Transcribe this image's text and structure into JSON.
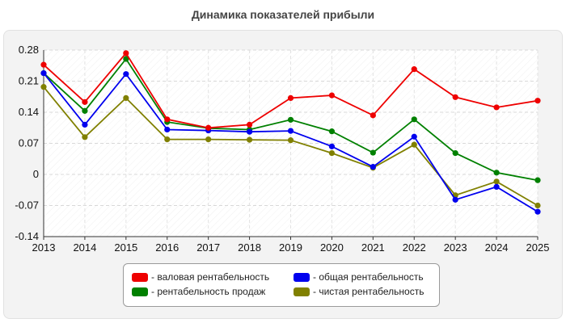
{
  "chart_data": {
    "type": "line",
    "title": "Динамика показателей прибыли",
    "x": [
      "2013",
      "2014",
      "2015",
      "2016",
      "2017",
      "2018",
      "2019",
      "2020",
      "2021",
      "2022",
      "2023",
      "2024",
      "2025"
    ],
    "y_ticks": [
      "0.28",
      "0.21",
      "0.14",
      "0.07",
      "0",
      "-0.07",
      "-0.14"
    ],
    "ylim": [
      -0.14,
      0.28
    ],
    "grid": true,
    "legend_position": "bottom",
    "series": [
      {
        "name": "- валовая рентабельность",
        "color": "#ee0000",
        "values": [
          0.247,
          0.163,
          0.273,
          0.124,
          0.105,
          0.112,
          0.172,
          0.178,
          0.133,
          0.237,
          0.174,
          0.151,
          0.166
        ]
      },
      {
        "name": "- общая рентабельность",
        "color": "#0000ee",
        "values": [
          0.228,
          0.112,
          0.226,
          0.101,
          0.099,
          0.096,
          0.098,
          0.063,
          0.017,
          0.085,
          -0.057,
          -0.028,
          -0.084
        ]
      },
      {
        "name": "- рентабельность продаж",
        "color": "#008000",
        "values": [
          0.228,
          0.143,
          0.26,
          0.118,
          0.104,
          0.101,
          0.123,
          0.097,
          0.049,
          0.124,
          0.048,
          0.004,
          -0.013
        ]
      },
      {
        "name": "- чистая рентабельность",
        "color": "#808000",
        "values": [
          0.197,
          0.084,
          0.172,
          0.079,
          0.079,
          0.078,
          0.077,
          0.048,
          0.015,
          0.067,
          -0.047,
          -0.016,
          -0.07
        ]
      }
    ]
  }
}
